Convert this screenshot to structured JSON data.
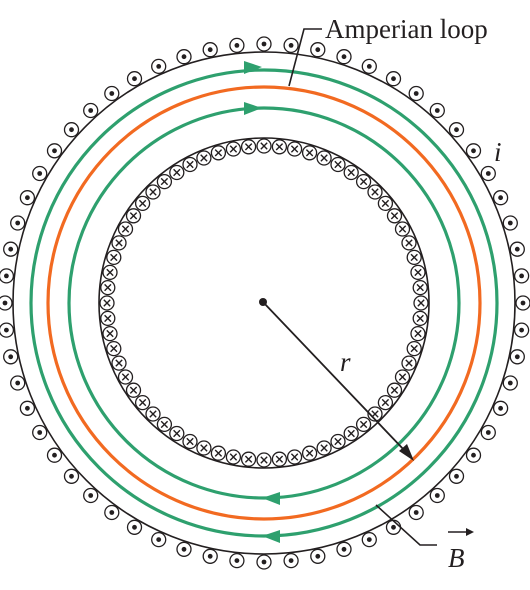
{
  "labels": {
    "amperian_loop": "Amperian loop",
    "current": "i",
    "radius": "r",
    "field": "B"
  },
  "colors": {
    "field_lines": "#2ea06e",
    "amperian_loop": "#f26a21",
    "wire": "#231f20"
  },
  "icons": {
    "outer_winding": "current-out-of-page-dot",
    "inner_winding": "current-into-page-cross"
  }
}
